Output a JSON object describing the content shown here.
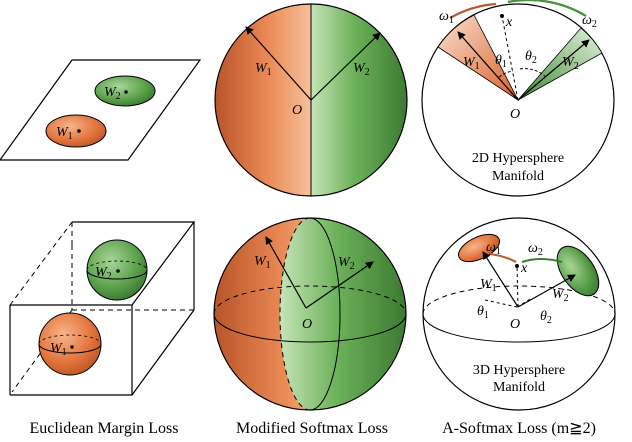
{
  "captions": {
    "euclidean": "Euclidean Margin Loss",
    "modified": "Modified Softmax Loss",
    "asoftmax": "A-Softmax Loss (m≧2)"
  },
  "labels": {
    "w1": "W",
    "w2": "W",
    "sub1": "1",
    "sub2": "2",
    "origin": "O",
    "x": "x",
    "theta": "θ",
    "omega": "ω",
    "hs2d_line1": "2D Hypersphere",
    "hs2d_line2": "Manifold",
    "hs3d_line1": "3D Hypersphere",
    "hs3d_line2": "Manifold"
  },
  "colors": {
    "orange": "#e07a45",
    "orange_dark": "#b8542a",
    "green": "#5aa04a",
    "green_dark": "#3c7a32",
    "arc_orange": "#b85a30",
    "arc_green": "#4a8f3e"
  }
}
